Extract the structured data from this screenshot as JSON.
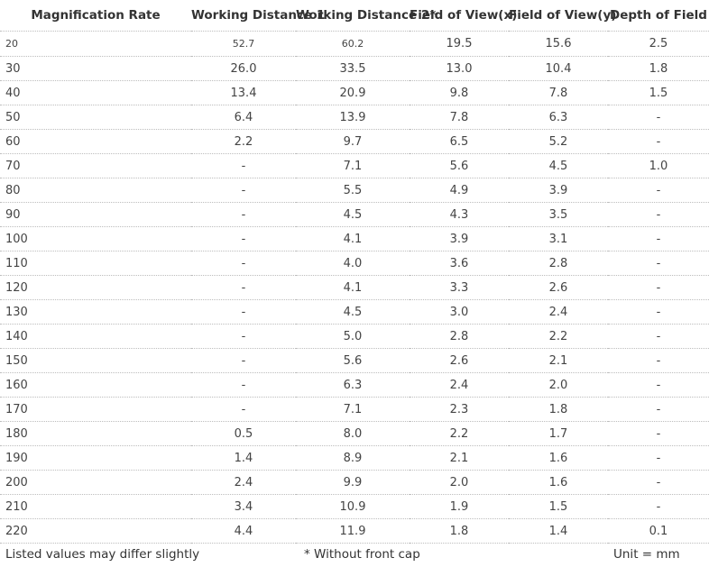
{
  "headers": [
    "Magnification Rate",
    "Working Distance 1",
    "Working Distance 2*",
    "Field of View(x)",
    "Field of View(y)",
    "Depth of Field"
  ],
  "rows": [
    [
      "20",
      "52.7",
      "60.2",
      "19.5",
      "15.6",
      "2.5"
    ],
    [
      "30",
      "26.0",
      "33.5",
      "13.0",
      "10.4",
      "1.8"
    ],
    [
      "40",
      "13.4",
      "20.9",
      "9.8",
      "7.8",
      "1.5"
    ],
    [
      "50",
      "6.4",
      "13.9",
      "7.8",
      "6.3",
      "-"
    ],
    [
      "60",
      "2.2",
      "9.7",
      "6.5",
      "5.2",
      "-"
    ],
    [
      "70",
      "-",
      "7.1",
      "5.6",
      "4.5",
      "1.0"
    ],
    [
      "80",
      "-",
      "5.5",
      "4.9",
      "3.9",
      "-"
    ],
    [
      "90",
      "-",
      "4.5",
      "4.3",
      "3.5",
      "-"
    ],
    [
      "100",
      "-",
      "4.1",
      "3.9",
      "3.1",
      "-"
    ],
    [
      "110",
      "-",
      "4.0",
      "3.6",
      "2.8",
      "-"
    ],
    [
      "120",
      "-",
      "4.1",
      "3.3",
      "2.6",
      "-"
    ],
    [
      "130",
      "-",
      "4.5",
      "3.0",
      "2.4",
      "-"
    ],
    [
      "140",
      "-",
      "5.0",
      "2.8",
      "2.2",
      "-"
    ],
    [
      "150",
      "-",
      "5.6",
      "2.6",
      "2.1",
      "-"
    ],
    [
      "160",
      "-",
      "6.3",
      "2.4",
      "2.0",
      "-"
    ],
    [
      "170",
      "-",
      "7.1",
      "2.3",
      "1.8",
      "-"
    ],
    [
      "180",
      "0.5",
      "8.0",
      "2.2",
      "1.7",
      "-"
    ],
    [
      "190",
      "1.4",
      "8.9",
      "2.1",
      "1.6",
      "-"
    ],
    [
      "200",
      "2.4",
      "9.9",
      "2.0",
      "1.6",
      "-"
    ],
    [
      "210",
      "3.4",
      "10.9",
      "1.9",
      "1.5",
      "-"
    ],
    [
      "220",
      "4.4",
      "11.9",
      "1.8",
      "1.4",
      "0.1"
    ]
  ],
  "footer": {
    "left": "Listed values may differ slightly",
    "middle": "* Without front cap",
    "right": "Unit = mm"
  }
}
